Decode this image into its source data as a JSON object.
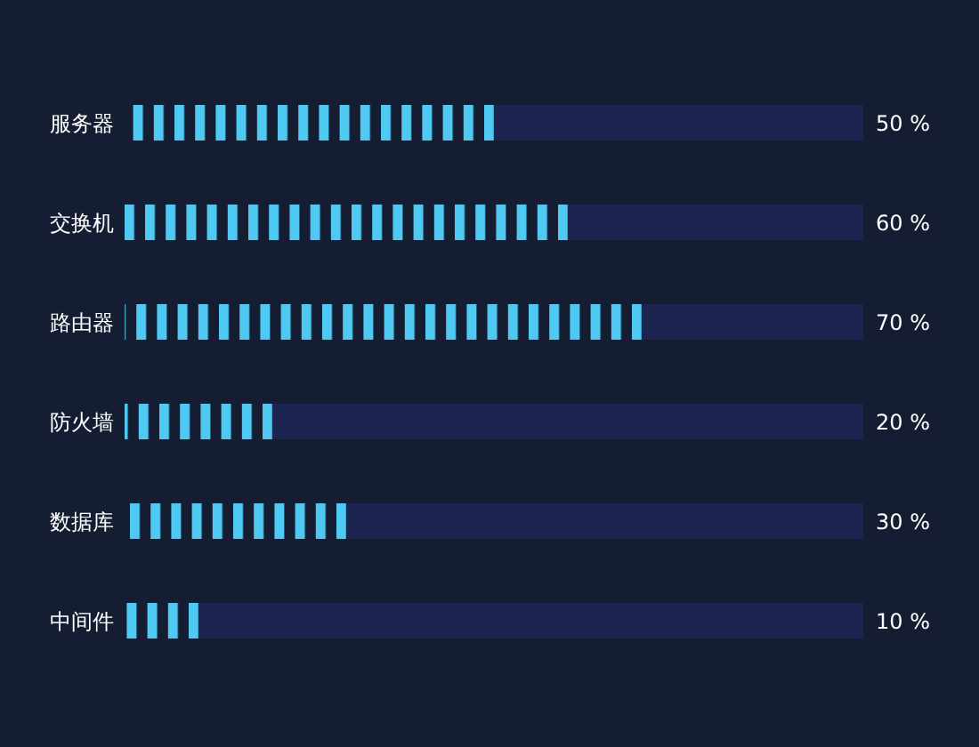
{
  "chart_data": {
    "type": "bar",
    "orientation": "horizontal",
    "stacked": true,
    "categories": [
      "服务器",
      "交换机",
      "路由器",
      "防火墙",
      "数据库",
      "中间件"
    ],
    "series": [
      {
        "color": "#4fc8f2",
        "values": [
          50,
          60,
          70,
          20,
          30,
          10
        ],
        "value_labels": [
          "50 %",
          "60 %",
          "70 %",
          "20 %",
          "30 %",
          "10 %"
        ]
      },
      {
        "color": "#1b2550",
        "values": [
          50,
          40,
          30,
          80,
          70,
          90
        ]
      }
    ],
    "xlim": [
      0,
      100
    ],
    "tick_labels": "y"
  }
}
